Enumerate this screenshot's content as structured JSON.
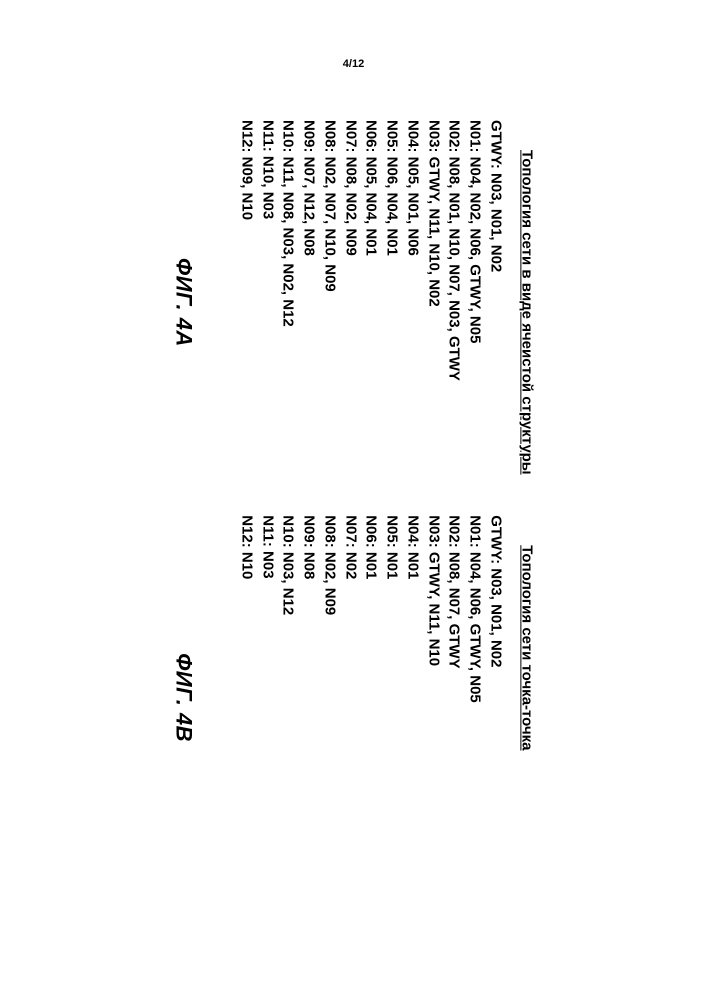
{
  "page_number": "4/12",
  "font": {
    "family": "Arial",
    "color": "#000000"
  },
  "columns": [
    {
      "title": "Топология сети в виде ячеистой структуры",
      "fig_label": "ФИГ. 4A",
      "rows": [
        "GTWY: N03, N01, N02",
        "N01: N04, N02, N06, GTWY, N05",
        "N02: N08, N01, N10, N07, N03, GTWY",
        "N03: GTWY, N11, N10, N02",
        "N04: N05, N01, N06",
        "N05: N06, N04, N01",
        "N06: N05, N04, N01",
        "N07: N08, N02, N09",
        "N08: N02, N07, N10, N09",
        "N09: N07, N12, N08",
        "N10: N11, N08, N03, N02, N12",
        "N11: N10, N03",
        "N12: N09, N10"
      ]
    },
    {
      "title": "Топология сети точка-точка",
      "fig_label": "ФИГ. 4B",
      "rows": [
        "GTWY: N03, N01, N02",
        "N01: N04, N06, GTWY, N05",
        "N02: N08, N07, GTWY",
        "N03: GTWY, N11, N10",
        "N04: N01",
        "N05: N01",
        "N06: N01",
        "N07: N02",
        "N08: N02, N09",
        "N09: N08",
        "N10: N03, N12",
        "N11: N03",
        "N12: N10"
      ]
    }
  ]
}
